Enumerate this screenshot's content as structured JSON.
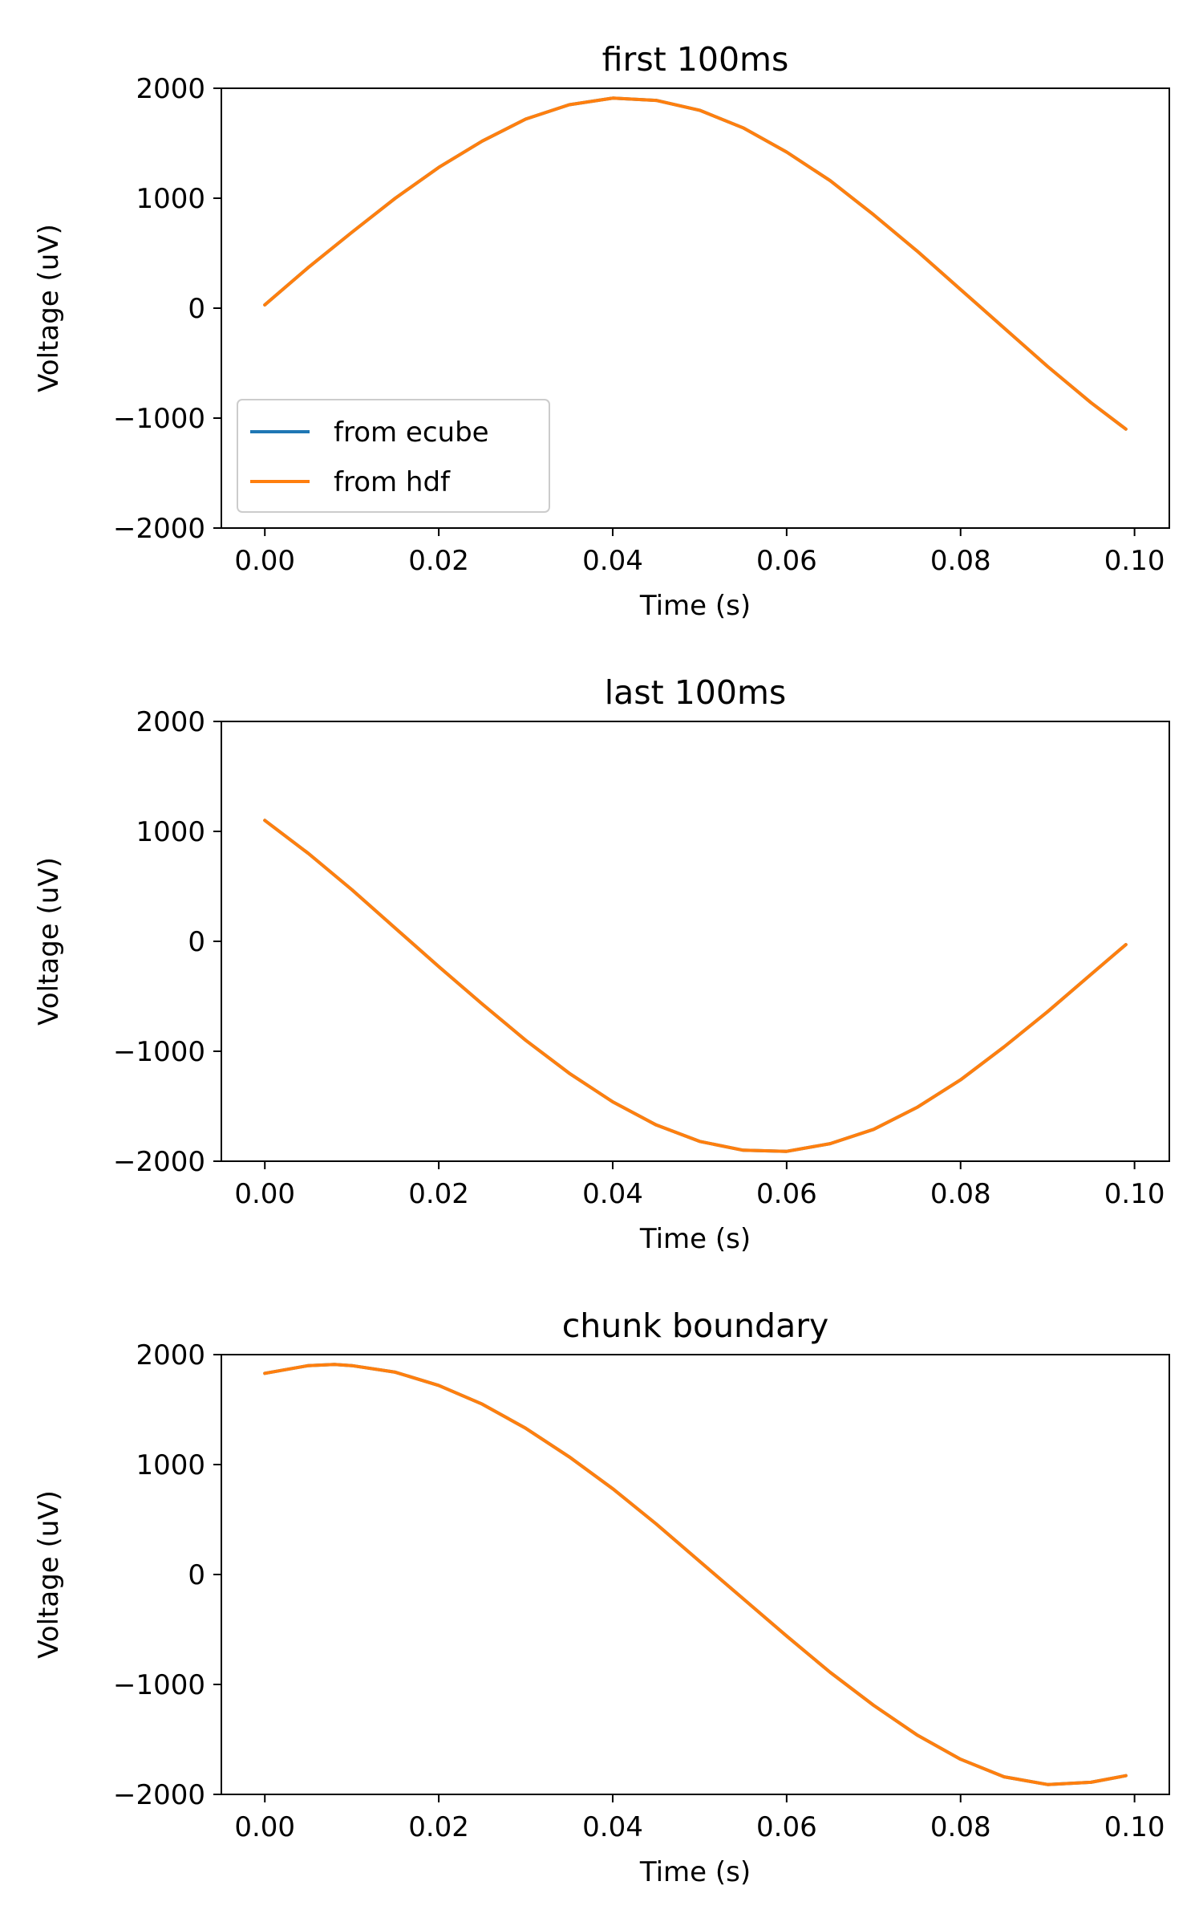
{
  "figure": {
    "colors": {
      "from ecube": "#1f77b4",
      "from hdf": "#ff7f0e"
    }
  },
  "chart_data": [
    {
      "type": "line",
      "title": "first 100ms",
      "xlabel": "Time (s)",
      "ylabel": "Voltage (uV)",
      "xlim": [
        -0.005,
        0.104
      ],
      "ylim": [
        -2000,
        2000
      ],
      "xticks": [
        0.0,
        0.02,
        0.04,
        0.06,
        0.08,
        0.1
      ],
      "xtick_labels": [
        "0.00",
        "0.02",
        "0.04",
        "0.06",
        "0.08",
        "0.10"
      ],
      "yticks": [
        -2000,
        -1000,
        0,
        1000,
        2000
      ],
      "ytick_labels": [
        "−2000",
        "−1000",
        "0",
        "1000",
        "2000"
      ],
      "grid": false,
      "legend": {
        "placement": "lower-left",
        "entries": [
          "from ecube",
          "from hdf"
        ]
      },
      "x": [
        0.0,
        0.005,
        0.01,
        0.015,
        0.02,
        0.025,
        0.03,
        0.035,
        0.04,
        0.045,
        0.05,
        0.055,
        0.06,
        0.065,
        0.07,
        0.075,
        0.08,
        0.085,
        0.09,
        0.095,
        0.099
      ],
      "series": [
        {
          "name": "from ecube",
          "values": [
            30,
            370,
            690,
            1000,
            1280,
            1520,
            1720,
            1850,
            1910,
            1890,
            1800,
            1640,
            1420,
            1160,
            850,
            520,
            170,
            -180,
            -530,
            -860,
            -1100
          ]
        },
        {
          "name": "from hdf",
          "values": [
            30,
            370,
            690,
            1000,
            1280,
            1520,
            1720,
            1850,
            1910,
            1890,
            1800,
            1640,
            1420,
            1160,
            850,
            520,
            170,
            -180,
            -530,
            -860,
            -1100
          ]
        }
      ]
    },
    {
      "type": "line",
      "title": "last 100ms",
      "xlabel": "Time (s)",
      "ylabel": "Voltage (uV)",
      "xlim": [
        -0.005,
        0.104
      ],
      "ylim": [
        -2000,
        2000
      ],
      "xticks": [
        0.0,
        0.02,
        0.04,
        0.06,
        0.08,
        0.1
      ],
      "xtick_labels": [
        "0.00",
        "0.02",
        "0.04",
        "0.06",
        "0.08",
        "0.10"
      ],
      "yticks": [
        -2000,
        -1000,
        0,
        1000,
        2000
      ],
      "ytick_labels": [
        "−2000",
        "−1000",
        "0",
        "1000",
        "2000"
      ],
      "grid": false,
      "x": [
        0.0,
        0.005,
        0.01,
        0.015,
        0.02,
        0.025,
        0.03,
        0.035,
        0.04,
        0.045,
        0.05,
        0.055,
        0.06,
        0.065,
        0.07,
        0.075,
        0.08,
        0.085,
        0.09,
        0.095,
        0.099
      ],
      "series": [
        {
          "name": "from ecube",
          "values": [
            1100,
            800,
            470,
            120,
            -230,
            -570,
            -900,
            -1200,
            -1460,
            -1670,
            -1820,
            -1900,
            -1910,
            -1840,
            -1710,
            -1510,
            -1260,
            -960,
            -640,
            -300,
            -30
          ]
        },
        {
          "name": "from hdf",
          "values": [
            1100,
            800,
            470,
            120,
            -230,
            -570,
            -900,
            -1200,
            -1460,
            -1670,
            -1820,
            -1900,
            -1910,
            -1840,
            -1710,
            -1510,
            -1260,
            -960,
            -640,
            -300,
            -30
          ]
        }
      ]
    },
    {
      "type": "line",
      "title": "chunk boundary",
      "xlabel": "Time (s)",
      "ylabel": "Voltage (uV)",
      "xlim": [
        -0.005,
        0.104
      ],
      "ylim": [
        -2000,
        2000
      ],
      "xticks": [
        0.0,
        0.02,
        0.04,
        0.06,
        0.08,
        0.1
      ],
      "xtick_labels": [
        "0.00",
        "0.02",
        "0.04",
        "0.06",
        "0.08",
        "0.10"
      ],
      "yticks": [
        -2000,
        -1000,
        0,
        1000,
        2000
      ],
      "ytick_labels": [
        "−2000",
        "−1000",
        "0",
        "1000",
        "2000"
      ],
      "grid": false,
      "x": [
        0.0,
        0.005,
        0.008,
        0.01,
        0.015,
        0.02,
        0.025,
        0.03,
        0.035,
        0.04,
        0.045,
        0.05,
        0.055,
        0.06,
        0.065,
        0.07,
        0.075,
        0.08,
        0.085,
        0.09,
        0.095,
        0.099
      ],
      "series": [
        {
          "name": "from ecube",
          "values": [
            1830,
            1900,
            1910,
            1900,
            1840,
            1720,
            1550,
            1330,
            1070,
            780,
            460,
            120,
            -220,
            -560,
            -890,
            -1190,
            -1460,
            -1680,
            -1840,
            -1910,
            -1890,
            -1830
          ]
        },
        {
          "name": "from hdf",
          "values": [
            1830,
            1900,
            1910,
            1900,
            1840,
            1720,
            1550,
            1330,
            1070,
            780,
            460,
            120,
            -220,
            -560,
            -890,
            -1190,
            -1460,
            -1680,
            -1840,
            -1910,
            -1890,
            -1830
          ]
        }
      ]
    }
  ]
}
